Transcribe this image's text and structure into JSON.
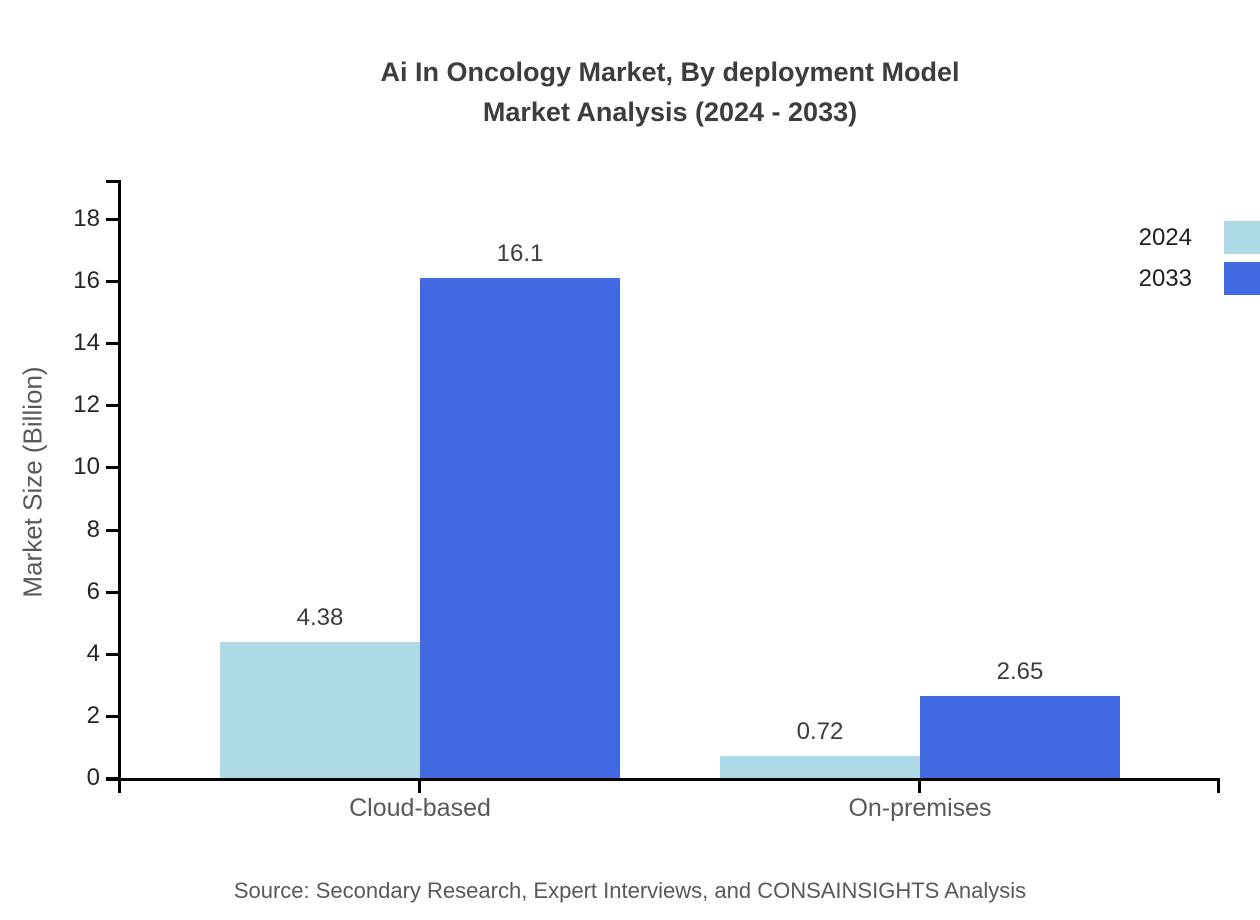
{
  "title": {
    "line1": "Ai In Oncology Market, By deployment Model",
    "line2": "Market Analysis (2024 - 2033)"
  },
  "chart_data": {
    "type": "bar",
    "categories": [
      "Cloud-based",
      "On-premises"
    ],
    "series": [
      {
        "name": "2024",
        "color": "#add8e6",
        "values": [
          4.38,
          0.72
        ],
        "value_labels": [
          "4.38",
          "0.72"
        ]
      },
      {
        "name": "2033",
        "color": "#4169e1",
        "values": [
          16.1,
          2.65
        ],
        "value_labels": [
          "16.1",
          "2.65"
        ]
      }
    ],
    "title": "Ai In Oncology Market, By deployment Model Market Analysis (2024 - 2033)",
    "xlabel": "",
    "ylabel": "Market Size (Billion)",
    "ylim": [
      0,
      18
    ],
    "yticks": [
      0,
      2,
      4,
      6,
      8,
      10,
      12,
      14,
      16,
      18
    ],
    "grid": false,
    "legend_position": "top-right",
    "axis_color": "#000000",
    "label_color": "#3d3d3d"
  },
  "source": "Source: Secondary Research, Expert Interviews, and CONSAINSIGHTS Analysis"
}
